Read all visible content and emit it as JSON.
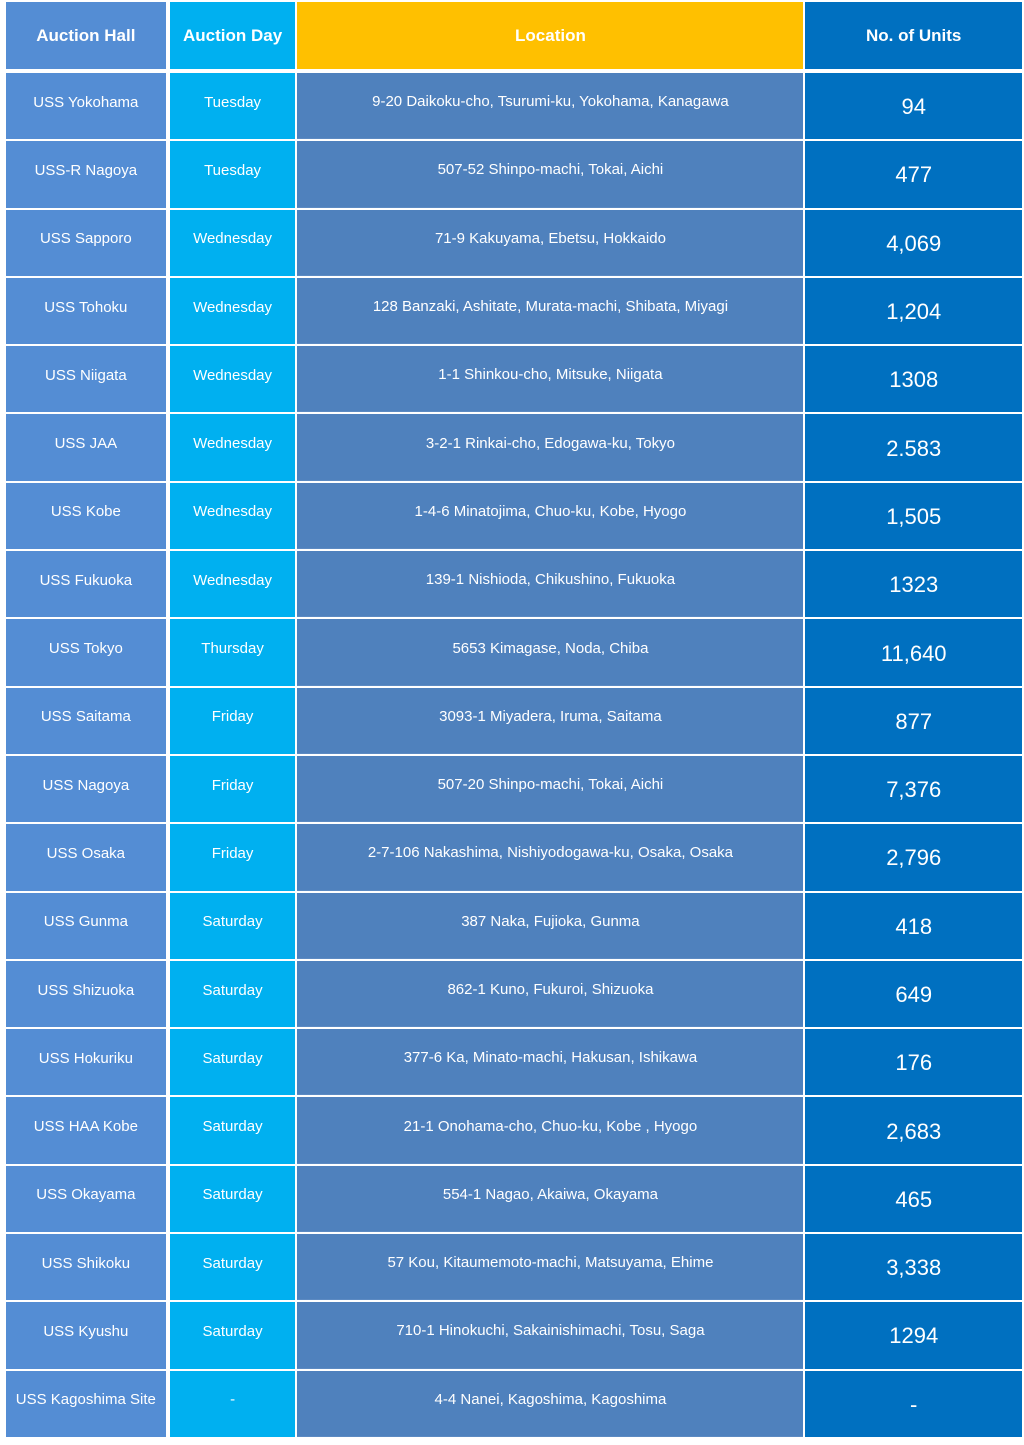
{
  "table": {
    "headers": {
      "hall": "Auction Hall",
      "day": "Auction Day",
      "location": "Location",
      "units": "No. of Units"
    },
    "colors": {
      "hall": "#548dd4",
      "day": "#00b0f0",
      "location_header": "#ffc000",
      "location": "#4f81bd",
      "units": "#0070c0"
    },
    "rows": [
      {
        "hall": "USS Yokohama",
        "day": "Tuesday",
        "location": "9-20 Daikoku-cho, Tsurumi-ku, Yokohama, Kanagawa",
        "units": "94"
      },
      {
        "hall": "USS-R Nagoya",
        "day": "Tuesday",
        "location": "507-52 Shinpo-machi, Tokai, Aichi",
        "units": "477"
      },
      {
        "hall": "USS Sapporo",
        "day": "Wednesday",
        "location": "71-9 Kakuyama, Ebetsu, Hokkaido",
        "units": "4,069"
      },
      {
        "hall": "USS Tohoku",
        "day": "Wednesday",
        "location": "128 Banzaki, Ashitate, Murata-machi, Shibata, Miyagi",
        "units": "1,204"
      },
      {
        "hall": "USS Niigata",
        "day": "Wednesday",
        "location": "1-1 Shinkou-cho, Mitsuke, Niigata",
        "units": "1308"
      },
      {
        "hall": "USS JAA",
        "day": "Wednesday",
        "location": "3-2-1 Rinkai-cho, Edogawa-ku, Tokyo",
        "units": "2.583"
      },
      {
        "hall": "USS Kobe",
        "day": "Wednesday",
        "location": "1-4-6 Minatojima, Chuo-ku, Kobe, Hyogo",
        "units": "1,505"
      },
      {
        "hall": "USS Fukuoka",
        "day": "Wednesday",
        "location": "139-1 Nishioda, Chikushino, Fukuoka",
        "units": "1323"
      },
      {
        "hall": "USS Tokyo",
        "day": "Thursday",
        "location": "5653 Kimagase, Noda, Chiba",
        "units": "11,640"
      },
      {
        "hall": "USS Saitama",
        "day": "Friday",
        "location": "3093-1 Miyadera, Iruma, Saitama",
        "units": "877"
      },
      {
        "hall": "USS Nagoya",
        "day": "Friday",
        "location": "507-20 Shinpo-machi, Tokai, Aichi",
        "units": "7,376"
      },
      {
        "hall": "USS Osaka",
        "day": "Friday",
        "location": "2-7-106 Nakashima, Nishiyodogawa-ku, Osaka, Osaka",
        "units": "2,796"
      },
      {
        "hall": "USS Gunma",
        "day": "Saturday",
        "location": "387 Naka, Fujioka, Gunma",
        "units": "418"
      },
      {
        "hall": "USS Shizuoka",
        "day": "Saturday",
        "location": "862-1 Kuno, Fukuroi, Shizuoka",
        "units": "649"
      },
      {
        "hall": "USS Hokuriku",
        "day": "Saturday",
        "location": "377-6 Ka, Minato-machi, Hakusan, Ishikawa",
        "units": "176"
      },
      {
        "hall": "USS HAA Kobe",
        "day": "Saturday",
        "location": "21-1 Onohama-cho, Chuo-ku, Kobe , Hyogo",
        "units": "2,683"
      },
      {
        "hall": "USS Okayama",
        "day": "Saturday",
        "location": "554-1 Nagao, Akaiwa, Okayama",
        "units": "465"
      },
      {
        "hall": "USS Shikoku",
        "day": "Saturday",
        "location": "57 Kou, Kitaumemoto-machi, Matsuyama, Ehime",
        "units": "3,338"
      },
      {
        "hall": "USS Kyushu",
        "day": "Saturday",
        "location": "710-1 Hinokuchi, Sakainishimachi, Tosu, Saga",
        "units": "1294"
      },
      {
        "hall": "USS Kagoshima Site",
        "day": "-",
        "location": "4-4 Nanei, Kagoshima, Kagoshima",
        "units": "-"
      }
    ]
  }
}
